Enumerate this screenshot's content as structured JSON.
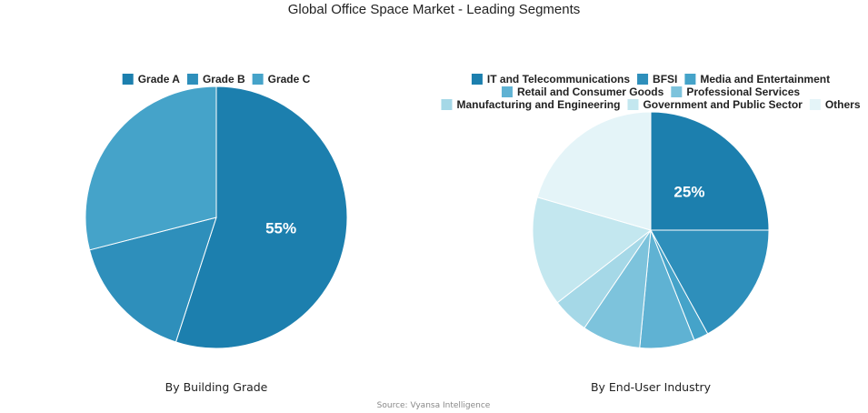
{
  "title": "Global Office Space Market - Leading Segments",
  "source": "Source: Vyansa Intelligence",
  "chart_data": [
    {
      "type": "pie",
      "subtitle": "By Building Grade",
      "categories": [
        "Grade A",
        "Grade B",
        "Grade C"
      ],
      "values": [
        55,
        16,
        29
      ],
      "colors": [
        "#1c7fae",
        "#2e8fbb",
        "#45a3c9"
      ],
      "data_labels": [
        "55%",
        "",
        ""
      ],
      "legend_placement": "top"
    },
    {
      "type": "pie",
      "subtitle": "By End-User Industry",
      "categories": [
        "IT and Telecommunications",
        "BFSI",
        "Media and Entertainment",
        "Retail and Consumer Goods",
        "Professional Services",
        "Manufacturing and Engineering",
        "Government and Public Sector",
        "Others"
      ],
      "values": [
        25,
        17,
        2,
        7.5,
        8,
        5,
        15,
        20.5
      ],
      "colors": [
        "#1c7fae",
        "#2e8fbb",
        "#45a3c9",
        "#5fb2d3",
        "#7dc3dc",
        "#a5d8e7",
        "#c3e7ef",
        "#e4f4f8"
      ],
      "data_labels": [
        "25%",
        "",
        "",
        "",
        "",
        "",
        "",
        ""
      ],
      "legend_placement": "top"
    }
  ]
}
